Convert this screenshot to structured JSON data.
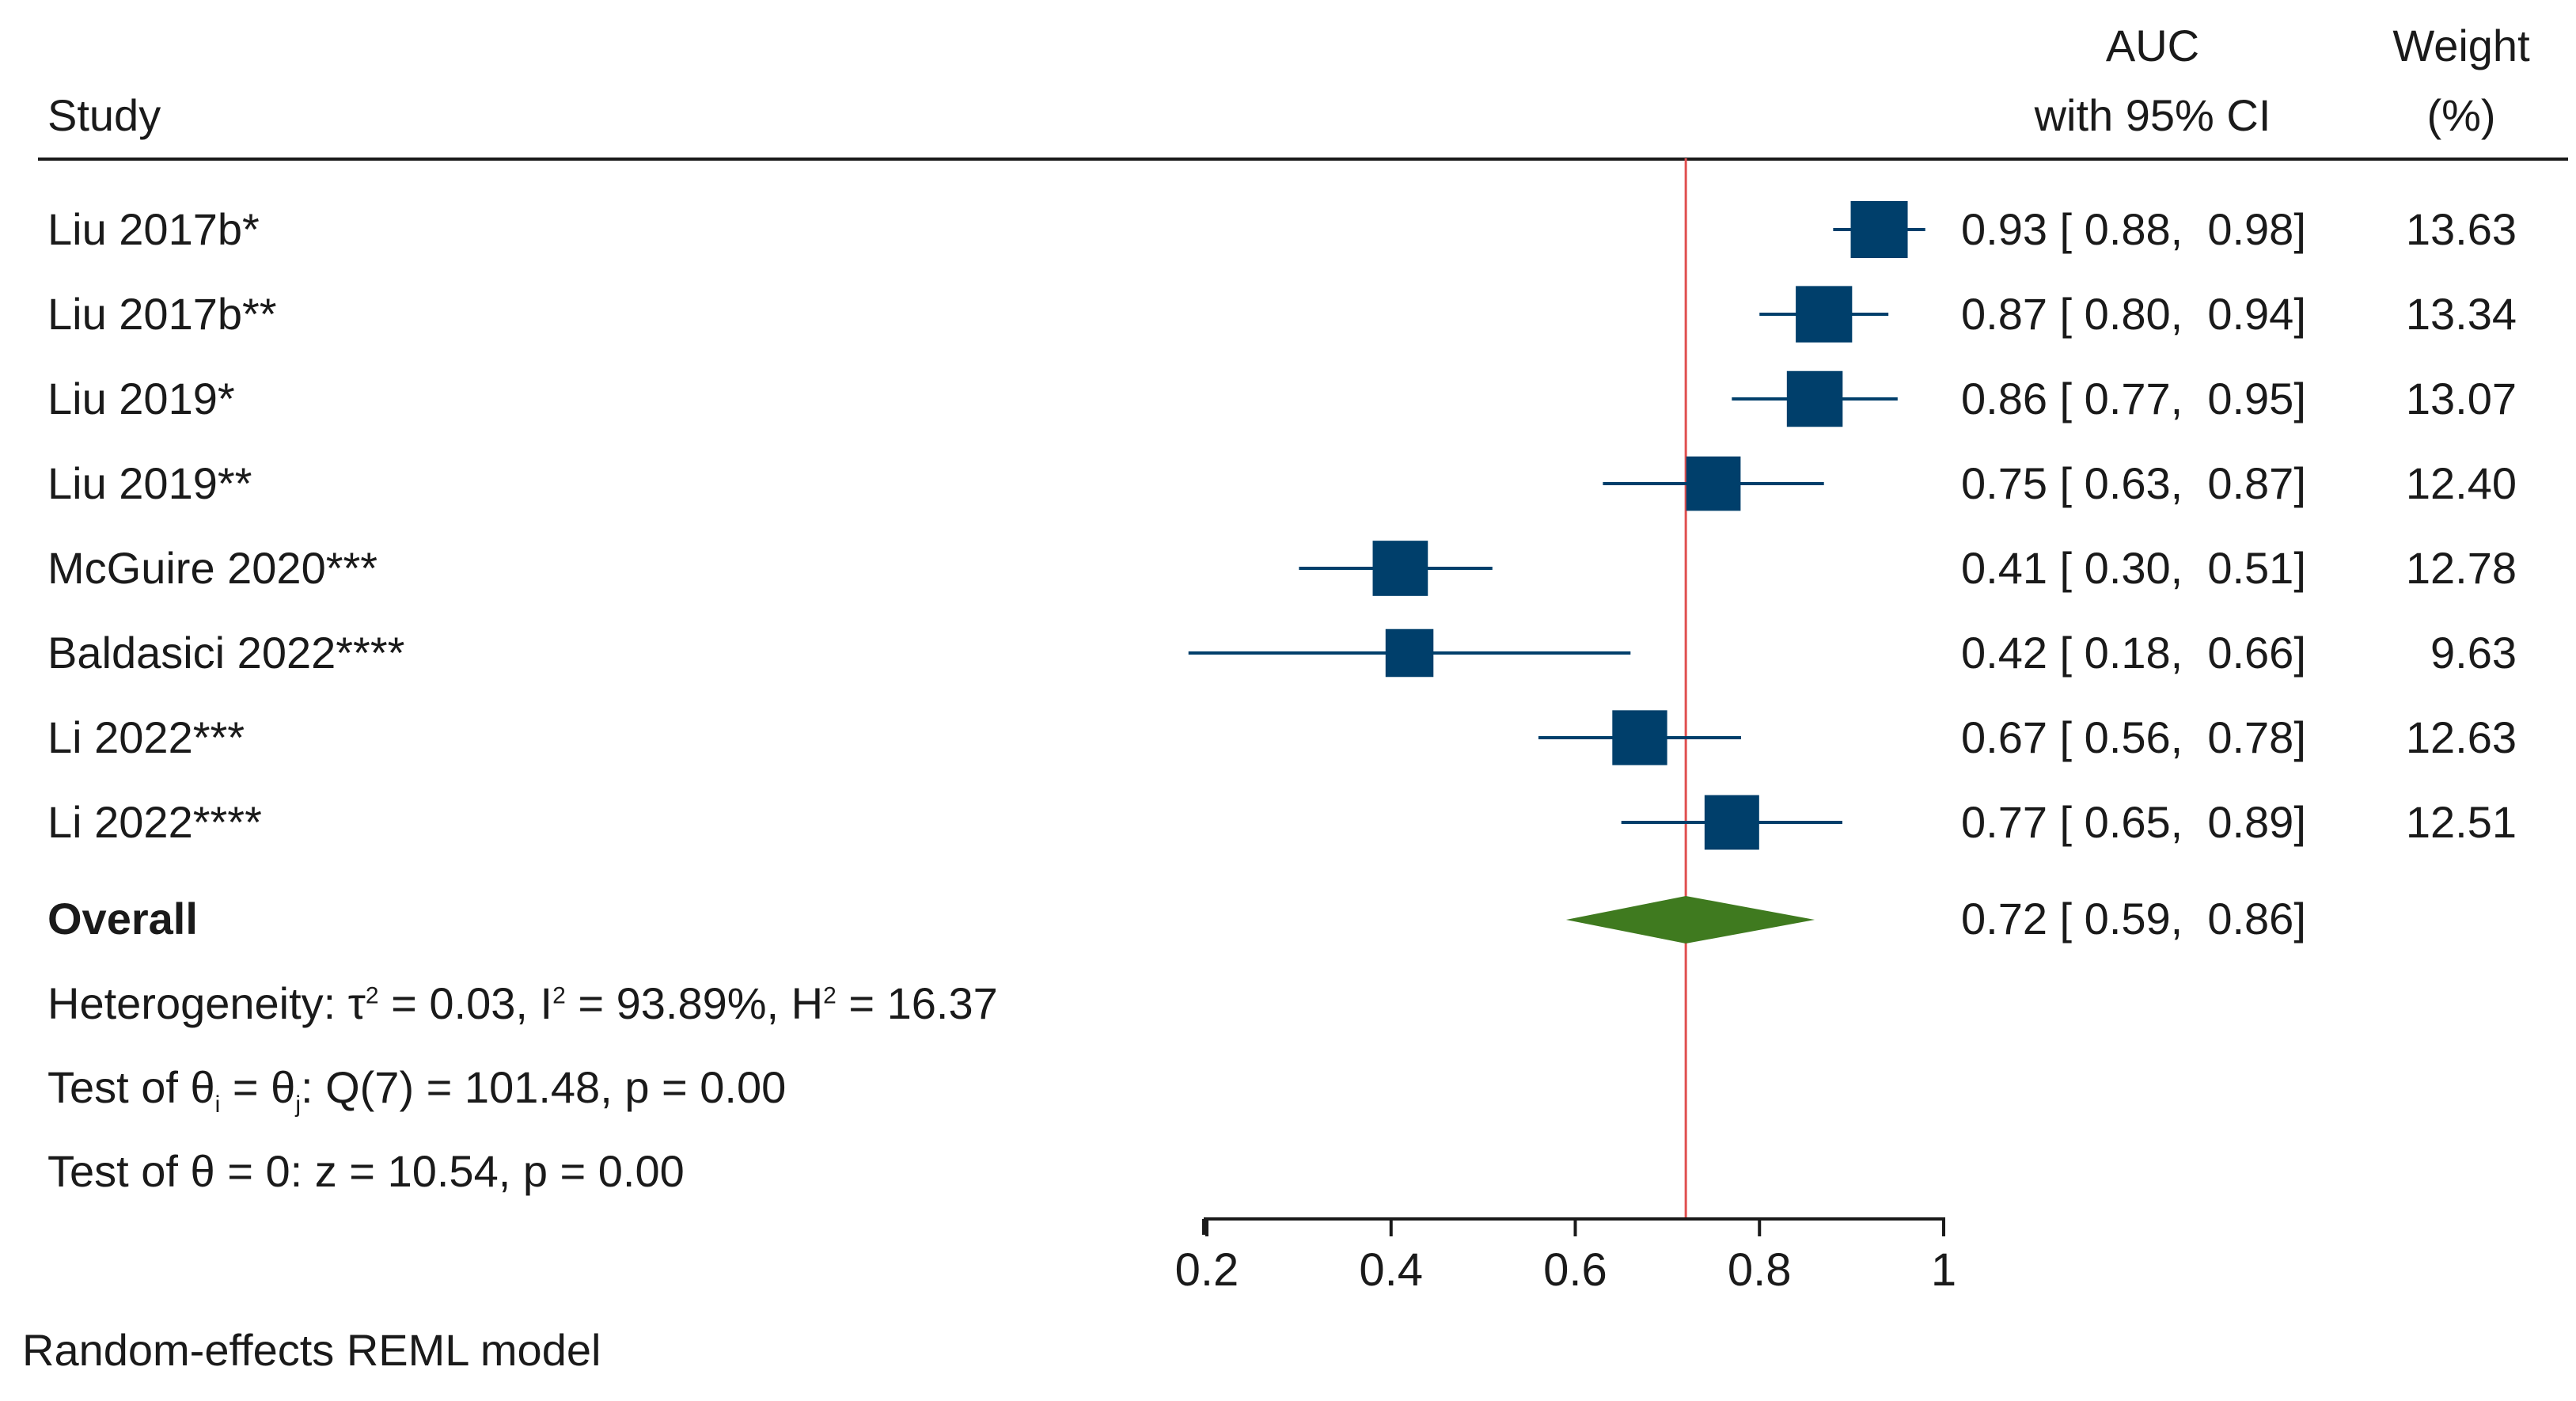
{
  "header": {
    "study_label": "Study",
    "auc_line1": "AUC",
    "auc_line2": "with 95% CI",
    "weight_line1": "Weight",
    "weight_line2": "(%)"
  },
  "colors": {
    "marker": "#003f6b",
    "diamond": "#3f7a1f",
    "reference_line": "#e05050",
    "axis": "#1a1a1a"
  },
  "chart_data": {
    "type": "forest",
    "x_axis": {
      "min": 0.2,
      "max": 1.0,
      "ticks": [
        0.2,
        0.4,
        0.6,
        0.8,
        1.0
      ],
      "tick_labels": [
        "0.2",
        "0.4",
        "0.6",
        "0.8",
        "1"
      ]
    },
    "reference_value": 0.72,
    "studies": [
      {
        "name": "Liu 2017b*",
        "auc": 0.93,
        "lower": 0.88,
        "upper": 0.98,
        "ci_text": "0.93 [ 0.88,  0.98]",
        "weight": 13.63,
        "weight_text": "13.63"
      },
      {
        "name": "Liu 2017b**",
        "auc": 0.87,
        "lower": 0.8,
        "upper": 0.94,
        "ci_text": "0.87 [ 0.80,  0.94]",
        "weight": 13.34,
        "weight_text": "13.34"
      },
      {
        "name": "Liu 2019*",
        "auc": 0.86,
        "lower": 0.77,
        "upper": 0.95,
        "ci_text": "0.86 [ 0.77,  0.95]",
        "weight": 13.07,
        "weight_text": "13.07"
      },
      {
        "name": "Liu 2019**",
        "auc": 0.75,
        "lower": 0.63,
        "upper": 0.87,
        "ci_text": "0.75 [ 0.63,  0.87]",
        "weight": 12.4,
        "weight_text": "12.40"
      },
      {
        "name": "McGuire 2020***",
        "auc": 0.41,
        "lower": 0.3,
        "upper": 0.51,
        "ci_text": "0.41 [ 0.30,  0.51]",
        "weight": 12.78,
        "weight_text": "12.78"
      },
      {
        "name": "Baldasici 2022****",
        "auc": 0.42,
        "lower": 0.18,
        "upper": 0.66,
        "ci_text": "0.42 [ 0.18,  0.66]",
        "weight": 9.63,
        "weight_text": "9.63"
      },
      {
        "name": "Li 2022***",
        "auc": 0.67,
        "lower": 0.56,
        "upper": 0.78,
        "ci_text": "0.67 [ 0.56,  0.78]",
        "weight": 12.63,
        "weight_text": "12.63"
      },
      {
        "name": "Li 2022****",
        "auc": 0.77,
        "lower": 0.65,
        "upper": 0.89,
        "ci_text": "0.77 [ 0.65,  0.89]",
        "weight": 12.51,
        "weight_text": "12.51"
      }
    ],
    "overall": {
      "name": "Overall",
      "auc": 0.72,
      "lower": 0.59,
      "upper": 0.86,
      "ci_text": "0.72 [ 0.59,  0.86]"
    }
  },
  "stats": {
    "heterogeneity_prefix": "Heterogeneity: τ",
    "heterogeneity_tau_sup": "2",
    "heterogeneity_mid": " = 0.03, I",
    "heterogeneity_i_sup": "2",
    "heterogeneity_mid2": " = 93.89%, H",
    "heterogeneity_h_sup": "2",
    "heterogeneity_end": " = 16.37",
    "test_theta_prefix": "Test of θ",
    "test_theta_sub_i": "i",
    "test_theta_mid": " = θ",
    "test_theta_sub_j": "j",
    "test_theta_end": ": Q(7) = 101.48, p = 0.00",
    "test_zero": "Test of θ = 0: z = 10.54, p = 0.00"
  },
  "footer": {
    "model_note": "Random-effects REML model"
  }
}
